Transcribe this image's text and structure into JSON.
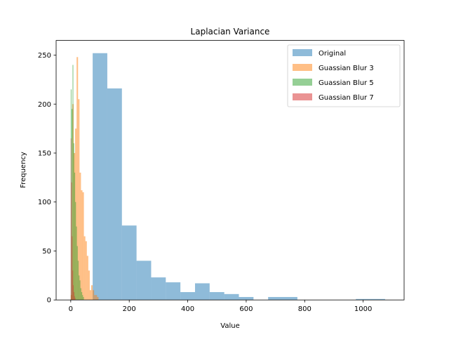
{
  "chart_data": {
    "type": "histogram",
    "title": "Laplacian Variance",
    "xlabel": "Value",
    "ylabel": "Frequency",
    "xlim": [
      -50,
      1140
    ],
    "ylim": [
      0,
      265
    ],
    "xticks": [
      0,
      200,
      400,
      600,
      800,
      1000
    ],
    "yticks": [
      0,
      50,
      100,
      150,
      200,
      250
    ],
    "grid": false,
    "legend_position": "top-right",
    "series": [
      {
        "name": "Original",
        "color": "#1f77b4",
        "alpha": 0.5,
        "bins": [
          {
            "x0": 75,
            "x1": 125,
            "count": 252
          },
          {
            "x0": 125,
            "x1": 175,
            "count": 216
          },
          {
            "x0": 175,
            "x1": 225,
            "count": 76
          },
          {
            "x0": 225,
            "x1": 275,
            "count": 40
          },
          {
            "x0": 275,
            "x1": 325,
            "count": 23
          },
          {
            "x0": 325,
            "x1": 375,
            "count": 18
          },
          {
            "x0": 375,
            "x1": 425,
            "count": 8
          },
          {
            "x0": 425,
            "x1": 475,
            "count": 17
          },
          {
            "x0": 475,
            "x1": 525,
            "count": 8
          },
          {
            "x0": 525,
            "x1": 575,
            "count": 6
          },
          {
            "x0": 575,
            "x1": 625,
            "count": 3
          },
          {
            "x0": 625,
            "x1": 675,
            "count": 0
          },
          {
            "x0": 675,
            "x1": 725,
            "count": 3
          },
          {
            "x0": 725,
            "x1": 775,
            "count": 3
          },
          {
            "x0": 775,
            "x1": 825,
            "count": 0
          },
          {
            "x0": 825,
            "x1": 875,
            "count": 0
          },
          {
            "x0": 875,
            "x1": 925,
            "count": 0
          },
          {
            "x0": 925,
            "x1": 975,
            "count": 0
          },
          {
            "x0": 975,
            "x1": 1025,
            "count": 1
          },
          {
            "x0": 1025,
            "x1": 1075,
            "count": 1
          }
        ]
      },
      {
        "name": "Guassian Blur 3",
        "color": "#ff7f0e",
        "alpha": 0.5,
        "bins": [
          {
            "x0": 0,
            "x1": 5,
            "count": 5
          },
          {
            "x0": 5,
            "x1": 10,
            "count": 200
          },
          {
            "x0": 10,
            "x1": 15,
            "count": 150
          },
          {
            "x0": 15,
            "x1": 20,
            "count": 175
          },
          {
            "x0": 20,
            "x1": 25,
            "count": 248
          },
          {
            "x0": 25,
            "x1": 30,
            "count": 205
          },
          {
            "x0": 30,
            "x1": 35,
            "count": 130
          },
          {
            "x0": 35,
            "x1": 40,
            "count": 112
          },
          {
            "x0": 40,
            "x1": 45,
            "count": 110
          },
          {
            "x0": 45,
            "x1": 50,
            "count": 65
          },
          {
            "x0": 50,
            "x1": 55,
            "count": 60
          },
          {
            "x0": 55,
            "x1": 60,
            "count": 45
          },
          {
            "x0": 60,
            "x1": 65,
            "count": 30
          },
          {
            "x0": 65,
            "x1": 70,
            "count": 10
          },
          {
            "x0": 70,
            "x1": 75,
            "count": 15
          },
          {
            "x0": 75,
            "x1": 80,
            "count": 10
          },
          {
            "x0": 80,
            "x1": 85,
            "count": 5
          },
          {
            "x0": 85,
            "x1": 90,
            "count": 5
          },
          {
            "x0": 90,
            "x1": 95,
            "count": 3
          }
        ]
      },
      {
        "name": "Guassian Blur 5",
        "color": "#2ca02c",
        "alpha": 0.5,
        "bins": [
          {
            "x0": 0,
            "x1": 3,
            "count": 215
          },
          {
            "x0": 3,
            "x1": 6,
            "count": 195
          },
          {
            "x0": 6,
            "x1": 9,
            "count": 240
          },
          {
            "x0": 9,
            "x1": 12,
            "count": 160
          },
          {
            "x0": 12,
            "x1": 15,
            "count": 130
          },
          {
            "x0": 15,
            "x1": 18,
            "count": 100
          },
          {
            "x0": 18,
            "x1": 21,
            "count": 75
          },
          {
            "x0": 21,
            "x1": 24,
            "count": 55
          },
          {
            "x0": 24,
            "x1": 27,
            "count": 40
          },
          {
            "x0": 27,
            "x1": 30,
            "count": 25
          },
          {
            "x0": 30,
            "x1": 33,
            "count": 20
          },
          {
            "x0": 33,
            "x1": 36,
            "count": 12
          },
          {
            "x0": 36,
            "x1": 39,
            "count": 8
          },
          {
            "x0": 39,
            "x1": 42,
            "count": 5
          },
          {
            "x0": 42,
            "x1": 45,
            "count": 3
          }
        ]
      },
      {
        "name": "Guassian Blur 7",
        "color": "#d62728",
        "alpha": 0.5,
        "bins": [
          {
            "x0": 0,
            "x1": 2,
            "count": 165
          },
          {
            "x0": 2,
            "x1": 4,
            "count": 120
          },
          {
            "x0": 4,
            "x1": 6,
            "count": 65
          },
          {
            "x0": 6,
            "x1": 8,
            "count": 30
          },
          {
            "x0": 8,
            "x1": 10,
            "count": 15
          },
          {
            "x0": 10,
            "x1": 12,
            "count": 8
          },
          {
            "x0": 12,
            "x1": 14,
            "count": 4
          },
          {
            "x0": 14,
            "x1": 16,
            "count": 2
          }
        ]
      }
    ]
  }
}
